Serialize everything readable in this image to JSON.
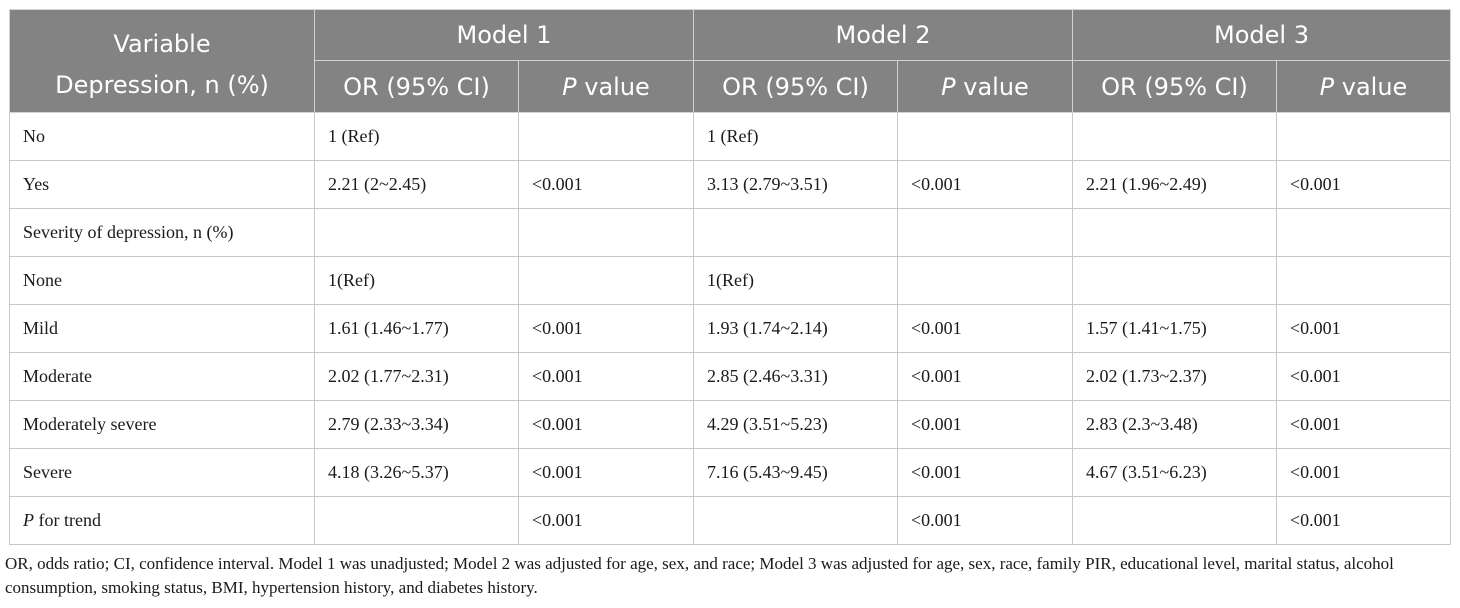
{
  "header": {
    "variable": "Variable",
    "depression": "Depression, n (%)",
    "models": [
      "Model 1",
      "Model 2",
      "Model 3"
    ],
    "or_ci": "OR (95% CI)",
    "p_italic": "P",
    "p_rest": " value"
  },
  "rows": [
    {
      "label": "No",
      "cells": [
        "1 (Ref)",
        "",
        "1 (Ref)",
        "",
        "",
        ""
      ]
    },
    {
      "label": "Yes",
      "cells": [
        "2.21 (2~2.45)",
        "<0.001",
        "3.13 (2.79~3.51)",
        "<0.001",
        "2.21 (1.96~2.49)",
        "<0.001"
      ]
    },
    {
      "label": "Severity of depression, n (%)",
      "cells": [
        "",
        "",
        "",
        "",
        "",
        ""
      ]
    },
    {
      "label": "None",
      "cells": [
        "1(Ref)",
        "",
        "1(Ref)",
        "",
        "",
        ""
      ]
    },
    {
      "label": "Mild",
      "cells": [
        "1.61 (1.46~1.77)",
        "<0.001",
        "1.93 (1.74~2.14)",
        "<0.001",
        "1.57 (1.41~1.75)",
        "<0.001"
      ]
    },
    {
      "label": "Moderate",
      "cells": [
        "2.02 (1.77~2.31)",
        "<0.001",
        "2.85 (2.46~3.31)",
        "<0.001",
        "2.02 (1.73~2.37)",
        "<0.001"
      ]
    },
    {
      "label": "Moderately severe",
      "cells": [
        "2.79 (2.33~3.34)",
        "<0.001",
        "4.29 (3.51~5.23)",
        "<0.001",
        "2.83 (2.3~3.48)",
        "<0.001"
      ]
    },
    {
      "label": "Severe",
      "cells": [
        "4.18 (3.26~5.37)",
        "<0.001",
        "7.16 (5.43~9.45)",
        "<0.001",
        "4.67 (3.51~6.23)",
        "<0.001"
      ]
    }
  ],
  "trend_row": {
    "label_italic": "P",
    "label_rest": " for trend",
    "cells": [
      "",
      "<0.001",
      "",
      "<0.001",
      "",
      "<0.001"
    ]
  },
  "footnote": "OR, odds ratio; CI, confidence interval. Model 1 was unadjusted; Model 2 was adjusted for age, sex, and race; Model 3 was adjusted for age, sex, race, family PIR, educational level, marital status, alcohol consumption, smoking status, BMI, hypertension history, and diabetes history."
}
